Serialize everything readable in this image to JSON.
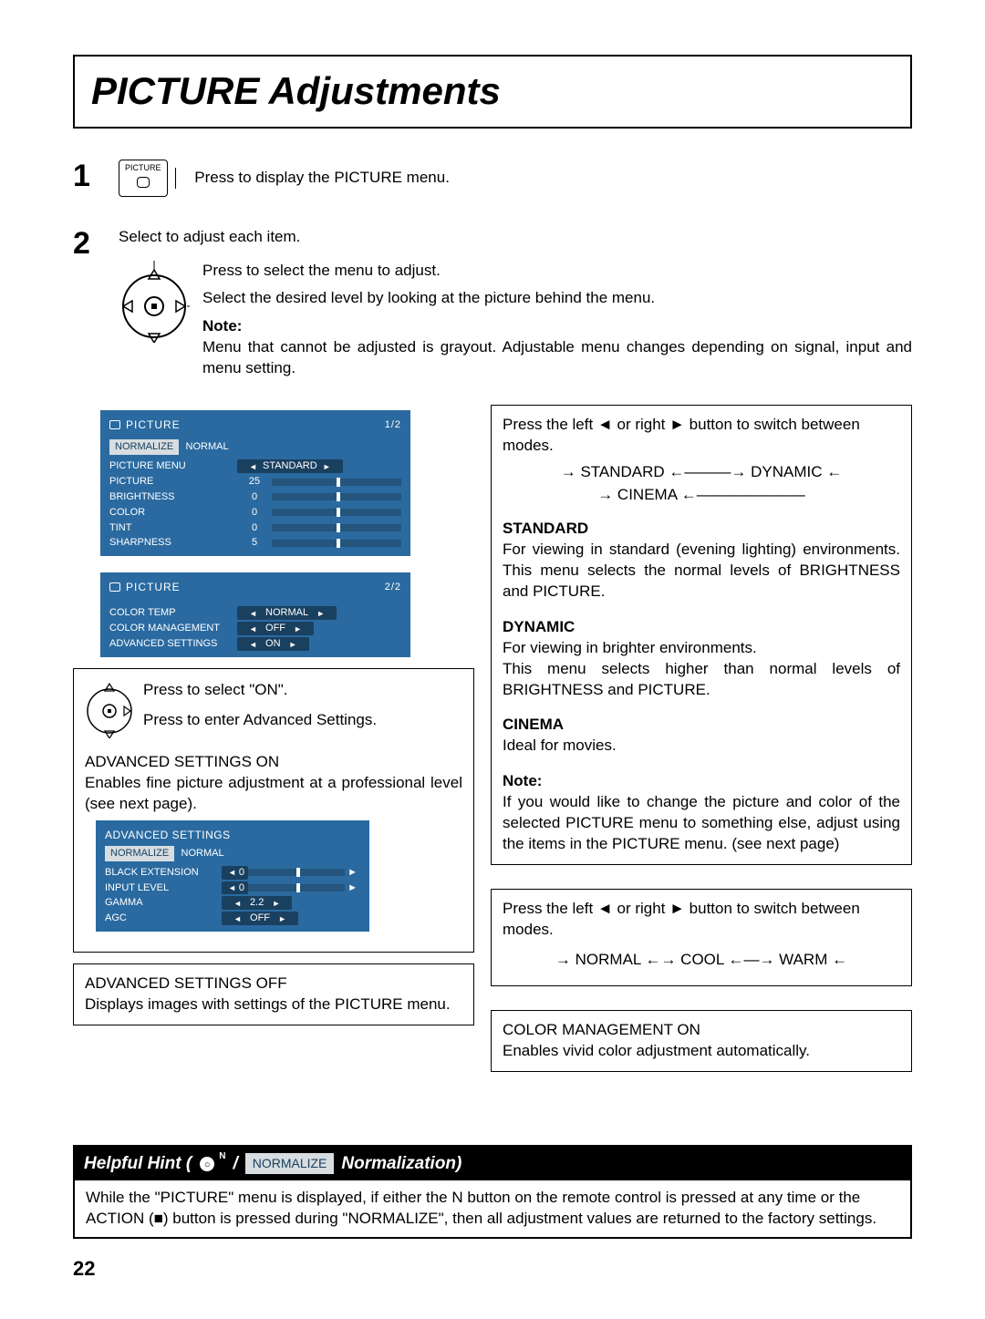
{
  "title": "PICTURE Adjustments",
  "step1": {
    "btnLabel": "PICTURE",
    "text": "Press to display the PICTURE menu."
  },
  "step2": {
    "intro": "Select to adjust each item.",
    "line1": "Press to select the menu to adjust.",
    "line2": "Select the desired level by looking at the picture behind the menu.",
    "noteLabel": "Note:",
    "noteText": "Menu that cannot be adjusted is grayout. Adjustable menu changes depending on signal, input and menu setting."
  },
  "osd1": {
    "title": "PICTURE",
    "page": "1/2",
    "normalize": "NORMALIZE",
    "normal": "NORMAL",
    "rows": [
      {
        "label": "PICTURE MENU",
        "type": "sel",
        "val": "STANDARD"
      },
      {
        "label": "PICTURE",
        "type": "bar",
        "val": "25"
      },
      {
        "label": "BRIGHTNESS",
        "type": "bar",
        "val": "0"
      },
      {
        "label": "COLOR",
        "type": "bar",
        "val": "0"
      },
      {
        "label": "TINT",
        "type": "bar",
        "val": "0"
      },
      {
        "label": "SHARPNESS",
        "type": "bar",
        "val": "5"
      }
    ]
  },
  "osd2": {
    "title": "PICTURE",
    "page": "2/2",
    "rows": [
      {
        "label": "COLOR TEMP",
        "val": "NORMAL"
      },
      {
        "label": "COLOR MANAGEMENT",
        "val": "OFF"
      },
      {
        "label": "ADVANCED SETTINGS",
        "val": "ON"
      }
    ]
  },
  "advBlock": {
    "selectOn": "Press to select \"ON\".",
    "enterAdv": "Press to enter Advanced Settings.",
    "onTitle": "ADVANCED SETTINGS ON",
    "onBody": "Enables fine picture adjustment at a professional level (see next page).",
    "offTitle": "ADVANCED SETTINGS OFF",
    "offBody": "Displays images with settings of the PICTURE menu."
  },
  "osd3": {
    "title": "ADVANCED SETTINGS",
    "normalize": "NORMALIZE",
    "normal": "NORMAL",
    "rows": [
      {
        "label": "BLACK EXTENSION",
        "type": "bar",
        "val": "0"
      },
      {
        "label": "INPUT LEVEL",
        "type": "bar",
        "val": "0"
      },
      {
        "label": "GAMMA",
        "type": "sel",
        "val": "2.2"
      },
      {
        "label": "AGC",
        "type": "sel",
        "val": "OFF"
      }
    ]
  },
  "rightTop": {
    "switchText": "Press the left ◄ or right ► button to switch between modes.",
    "modeLine1": "→ STANDARD ←———→ DYNAMIC ←",
    "modeLine2": "→  CINEMA  ←———————",
    "stdTitle": "STANDARD",
    "stdBody": "For viewing in standard (evening lighting) environments. This menu selects the normal levels of BRIGHTNESS and PICTURE.",
    "dynTitle": "DYNAMIC",
    "dynBody1": "For viewing in brighter environments.",
    "dynBody2": "This menu selects higher than normal levels of BRIGHTNESS and PICTURE.",
    "cinTitle": "CINEMA",
    "cinBody": "Ideal for movies.",
    "noteLabel": "Note:",
    "noteBody": "If you would like to change the picture and color of the selected PICTURE menu to something else, adjust using the items in the PICTURE menu. (see next page)"
  },
  "rightMid": {
    "switchText": "Press the left ◄ or right ► button to switch between modes.",
    "modeLine": "→ NORMAL ←→ COOL ←—→ WARM ←"
  },
  "rightBot": {
    "title": "COLOR MANAGEMENT ON",
    "body": "Enables vivid color adjustment automatically."
  },
  "hint": {
    "prefix": "Helpful Hint (",
    "slash": " / ",
    "normPill": "NORMALIZE",
    "suffix": " Normalization)",
    "body": "While the \"PICTURE\" menu is displayed, if either the N button on the remote control is pressed at any time or the ACTION (■) button is pressed during \"NORMALIZE\", then all adjustment values are returned to the factory settings."
  },
  "pageNumber": "22"
}
